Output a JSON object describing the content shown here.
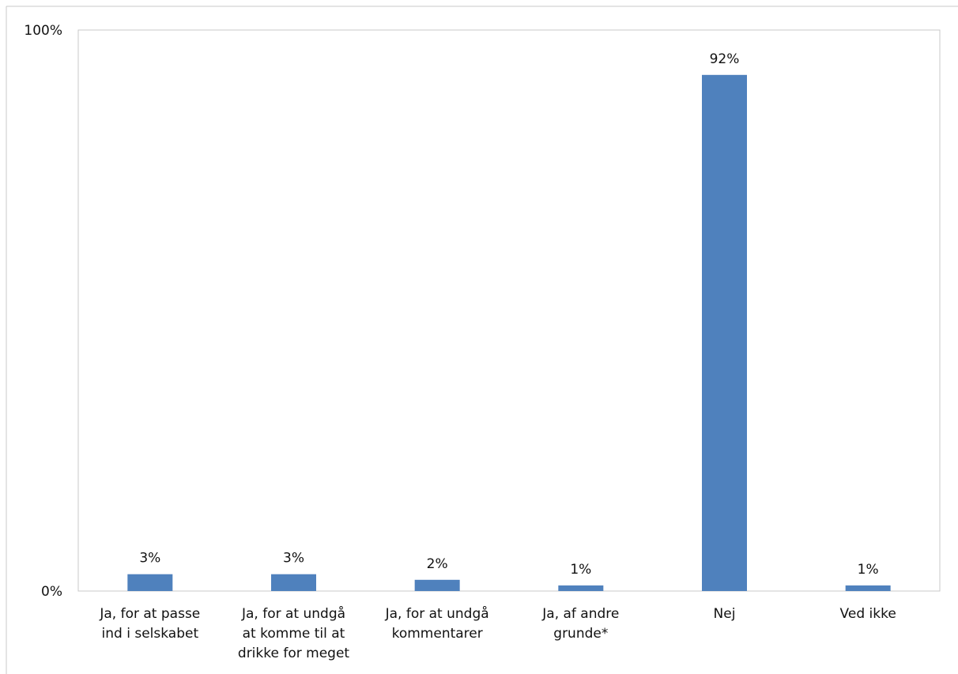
{
  "chart_data": {
    "type": "bar",
    "title": "",
    "xlabel": "",
    "ylabel": "",
    "categories": [
      [
        "Ja, for at passe",
        "ind i selskabet"
      ],
      [
        "Ja, for at undgå",
        "at komme til at",
        "drikke for meget"
      ],
      [
        "Ja, for at undgå",
        "kommentarer"
      ],
      [
        "Ja, af andre",
        "grunde*"
      ],
      [
        "Nej"
      ],
      [
        "Ved ikke"
      ]
    ],
    "values": [
      3,
      3,
      2,
      1,
      92,
      1
    ],
    "value_labels": [
      "3%",
      "3%",
      "2%",
      "1%",
      "92%",
      "1%"
    ],
    "y_ticks": [
      "0%",
      "100%"
    ],
    "ylim": [
      0,
      100
    ],
    "bar_color": "#4f81bd",
    "grid": false,
    "legend": "none"
  }
}
